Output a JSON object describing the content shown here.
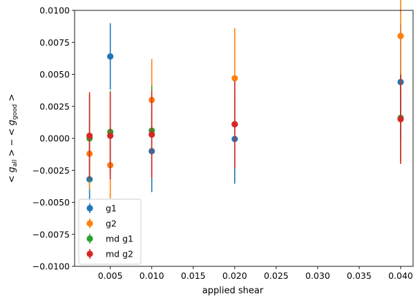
{
  "chart_data": {
    "type": "scatter",
    "title": "",
    "xlabel": "applied shear",
    "ylabel_parts": {
      "lt1": "< ",
      "g1": "g",
      "sub1": "all",
      "mid": " > − < ",
      "g2": "g",
      "sub2": "good",
      "gt2": " >"
    },
    "xlim": [
      0.0007,
      0.0415
    ],
    "ylim": [
      -0.01,
      0.01
    ],
    "xticks": [
      0.005,
      0.01,
      0.015,
      0.02,
      0.025,
      0.03,
      0.035,
      0.04
    ],
    "xtick_labels": [
      "0.005",
      "0.010",
      "0.015",
      "0.020",
      "0.025",
      "0.030",
      "0.035",
      "0.040"
    ],
    "yticks": [
      -0.01,
      -0.0075,
      -0.005,
      -0.0025,
      0.0,
      0.0025,
      0.005,
      0.0075,
      0.01
    ],
    "ytick_labels": [
      "−0.0100",
      "−0.0075",
      "−0.0050",
      "−0.0025",
      "0.0000",
      "0.0025",
      "0.0050",
      "0.0075",
      "0.0100"
    ],
    "grid": false,
    "legend_position": "lower-left",
    "series": [
      {
        "name": "g1",
        "color": "#1f77b4",
        "x": [
          0.0025,
          0.005,
          0.01,
          0.02,
          0.04
        ],
        "y": [
          -0.0032,
          0.0064,
          -0.001,
          -5e-05,
          0.0044
        ],
        "yerr": [
          0.0028,
          0.0026,
          0.0032,
          0.0035,
          0.0045
        ]
      },
      {
        "name": "g2",
        "color": "#ff7f0e",
        "x": [
          0.0025,
          0.005,
          0.01,
          0.02,
          0.04
        ],
        "y": [
          -0.0012,
          -0.0021,
          0.003,
          0.0047,
          0.008
        ],
        "yerr": [
          0.0028,
          0.0026,
          0.0032,
          0.0039,
          0.0048
        ]
      },
      {
        "name": "md g1",
        "color": "#2ca02c",
        "x": [
          0.0025,
          0.005,
          0.01,
          0.02,
          0.04
        ],
        "y": [
          0.0,
          0.0005,
          0.0006,
          0.0011,
          0.0016
        ],
        "yerr": [
          0.0034,
          0.0032,
          0.0035,
          0.0034,
          0.0034
        ]
      },
      {
        "name": "md g2",
        "color": "#d62728",
        "x": [
          0.0025,
          0.005,
          0.01,
          0.02,
          0.04
        ],
        "y": [
          0.0002,
          0.0002,
          0.0003,
          0.0011,
          0.0015
        ],
        "yerr": [
          0.0034,
          0.0034,
          0.0034,
          0.0034,
          0.0035
        ]
      }
    ]
  }
}
